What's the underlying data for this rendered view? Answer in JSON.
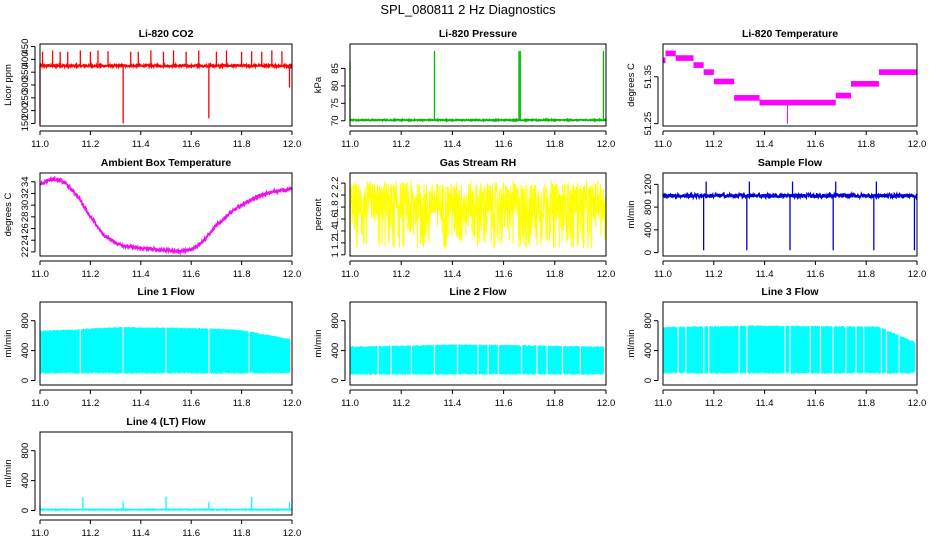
{
  "figure": {
    "title": "SPL_080811  2 Hz Diagnostics"
  },
  "chart_data": [
    {
      "type": "line",
      "title": "Li-820 CO2",
      "ylabel": "Licor ppm",
      "color": "#ff0000",
      "xlim": [
        11.0,
        12.0
      ],
      "ylim": [
        140,
        460
      ],
      "xticks": [
        "11.0",
        "11.2",
        "11.4",
        "11.6",
        "11.8",
        "12.0"
      ],
      "yticks": [
        150,
        200,
        250,
        300,
        350,
        400,
        450
      ],
      "pattern": "spiky",
      "base": 375,
      "noise": 4,
      "x_start": 11.0,
      "x_end": 12.0,
      "spikes": [
        [
          11.0,
          145
        ],
        [
          11.01,
          430
        ],
        [
          11.05,
          435
        ],
        [
          11.08,
          430
        ],
        [
          11.11,
          430
        ],
        [
          11.16,
          435
        ],
        [
          11.2,
          430
        ],
        [
          11.23,
          435
        ],
        [
          11.27,
          432
        ],
        [
          11.33,
          150
        ],
        [
          11.36,
          430
        ],
        [
          11.39,
          430
        ],
        [
          11.44,
          435
        ],
        [
          11.49,
          430
        ],
        [
          11.53,
          435
        ],
        [
          11.58,
          430
        ],
        [
          11.63,
          435
        ],
        [
          11.67,
          170
        ],
        [
          11.7,
          430
        ],
        [
          11.74,
          435
        ],
        [
          11.8,
          430
        ],
        [
          11.84,
          432
        ],
        [
          11.88,
          430
        ],
        [
          11.92,
          435
        ],
        [
          11.96,
          432
        ],
        [
          11.99,
          290
        ]
      ]
    },
    {
      "type": "line",
      "title": "Li-820 Pressure",
      "ylabel": "kPa",
      "color": "#00bb00",
      "xlim": [
        11.0,
        12.0
      ],
      "ylim": [
        68.5,
        92
      ],
      "xticks": [
        "11.0",
        "11.2",
        "11.4",
        "11.6",
        "11.8",
        "12.0"
      ],
      "yticks": [
        70,
        75,
        80,
        85
      ],
      "pattern": "spiky",
      "base": 70.2,
      "noise": 0.15,
      "x_start": 11.0,
      "x_end": 12.0,
      "spikes": [
        [
          11.0,
          87
        ],
        [
          11.33,
          90
        ],
        [
          11.66,
          90
        ],
        [
          11.665,
          90
        ],
        [
          11.99,
          90
        ]
      ]
    },
    {
      "type": "line",
      "title": "Li-820 Temperature",
      "ylabel": "degrees C",
      "color": "#ff00ff",
      "xlim": [
        11.0,
        12.0
      ],
      "ylim": [
        51.245,
        51.42
      ],
      "xticks": [
        "11.0",
        "11.2",
        "11.4",
        "11.6",
        "11.8",
        "12.0"
      ],
      "yticks": [
        51.25,
        51.35
      ],
      "pattern": "steps",
      "x_start": 11.0,
      "x_end": 12.0,
      "band": 0.012,
      "levels": [
        [
          11.0,
          11.01,
          51.385
        ],
        [
          11.01,
          11.05,
          51.4
        ],
        [
          11.05,
          11.12,
          51.39
        ],
        [
          11.12,
          11.16,
          51.375
        ],
        [
          11.16,
          11.2,
          51.36
        ],
        [
          11.2,
          11.28,
          51.34
        ],
        [
          11.28,
          11.38,
          51.305
        ],
        [
          11.38,
          11.68,
          51.295
        ],
        [
          11.68,
          11.74,
          51.31
        ],
        [
          11.74,
          11.85,
          51.335
        ],
        [
          11.85,
          12.0,
          51.36
        ]
      ],
      "spikes": [
        [
          11.49,
          51.25
        ]
      ]
    },
    {
      "type": "line",
      "title": "Ambient Box Temperature",
      "ylabel": "degrees C",
      "color": "#ee11ee",
      "xlim": [
        11.0,
        12.0
      ],
      "ylim": [
        21.3,
        35.5
      ],
      "xticks": [
        "11.0",
        "11.2",
        "11.4",
        "11.6",
        "11.8",
        "12.0"
      ],
      "yticks": [
        22,
        24,
        26,
        28,
        30,
        32,
        34
      ],
      "pattern": "curve",
      "x_start": 11.0,
      "x_end": 12.0,
      "band": 0.6,
      "points": [
        [
          11.0,
          33.5
        ],
        [
          11.03,
          34.3
        ],
        [
          11.06,
          34.5
        ],
        [
          11.1,
          33.8
        ],
        [
          11.15,
          31.5
        ],
        [
          11.2,
          28.0
        ],
        [
          11.25,
          25.0
        ],
        [
          11.3,
          23.5
        ],
        [
          11.35,
          22.9
        ],
        [
          11.4,
          22.6
        ],
        [
          11.5,
          22.3
        ],
        [
          11.55,
          22.1
        ],
        [
          11.6,
          22.3
        ],
        [
          11.65,
          24.0
        ],
        [
          11.7,
          26.5
        ],
        [
          11.75,
          28.5
        ],
        [
          11.8,
          30.0
        ],
        [
          11.85,
          31.2
        ],
        [
          11.9,
          32.0
        ],
        [
          11.95,
          32.5
        ],
        [
          12.0,
          32.8
        ]
      ]
    },
    {
      "type": "line",
      "title": "Gas Stream RH",
      "ylabel": "percent",
      "color": "#ffff00",
      "xlim": [
        11.0,
        12.0
      ],
      "ylim": [
        0.98,
        2.37
      ],
      "xticks": [
        "11.0",
        "11.2",
        "11.4",
        "11.6",
        "11.8",
        "12.0"
      ],
      "yticks": [
        1.0,
        1.2,
        1.4,
        1.6,
        1.8,
        2.0,
        2.2
      ],
      "pattern": "noisy",
      "x_start": 11.0,
      "x_end": 12.0,
      "low": 1.1,
      "high": 2.25,
      "core_low": 1.6,
      "core_high": 2.2
    },
    {
      "type": "line",
      "title": "Sample Flow",
      "ylabel": "ml/min",
      "color": "#0000dd",
      "xlim": [
        11.0,
        12.0
      ],
      "ylim": [
        -60,
        1400
      ],
      "xticks": [
        "11.0",
        "11.2",
        "11.4",
        "11.6",
        "11.8",
        "12.0"
      ],
      "yticks": [
        0,
        400,
        800,
        1200
      ],
      "pattern": "spiky",
      "base": 1000,
      "noise": 35,
      "x_start": 11.0,
      "x_end": 12.0,
      "spikes": [
        [
          11.0,
          1050
        ],
        [
          11.16,
          40
        ],
        [
          11.17,
          1250
        ],
        [
          11.33,
          40
        ],
        [
          11.34,
          1250
        ],
        [
          11.5,
          40
        ],
        [
          11.51,
          1250
        ],
        [
          11.67,
          40
        ],
        [
          11.68,
          1250
        ],
        [
          11.83,
          40
        ],
        [
          11.84,
          1250
        ],
        [
          11.99,
          40
        ]
      ]
    },
    {
      "type": "line",
      "title": "Line 1 Flow",
      "ylabel": "ml/min",
      "color": "#00ffff",
      "xlim": [
        11.0,
        12.0
      ],
      "ylim": [
        -60,
        1050
      ],
      "xticks": [
        "11.0",
        "11.2",
        "11.4",
        "11.6",
        "11.8",
        "12.0"
      ],
      "yticks": [
        0,
        400,
        800
      ],
      "pattern": "block",
      "x_start": 11.0,
      "x_end": 11.99,
      "low": 90,
      "high": 700,
      "tops": [
        [
          11.0,
          670
        ],
        [
          11.16,
          690
        ],
        [
          11.2,
          700
        ],
        [
          11.33,
          720
        ],
        [
          11.45,
          710
        ],
        [
          11.5,
          715
        ],
        [
          11.67,
          700
        ],
        [
          11.8,
          680
        ],
        [
          11.99,
          560
        ]
      ],
      "gaps": [
        11.16,
        11.33,
        11.5,
        11.67,
        11.83
      ]
    },
    {
      "type": "line",
      "title": "Line 2 Flow",
      "ylabel": "ml/min",
      "color": "#00ffff",
      "xlim": [
        11.0,
        12.0
      ],
      "ylim": [
        -60,
        1050
      ],
      "xticks": [
        "11.0",
        "11.2",
        "11.4",
        "11.6",
        "11.8",
        "12.0"
      ],
      "yticks": [
        0,
        400,
        800
      ],
      "pattern": "block",
      "x_start": 11.0,
      "x_end": 11.99,
      "low": 75,
      "high": 470,
      "tops": [
        [
          11.0,
          460
        ],
        [
          11.2,
          470
        ],
        [
          11.4,
          485
        ],
        [
          11.6,
          480
        ],
        [
          11.8,
          470
        ],
        [
          11.99,
          460
        ]
      ],
      "gaps": [
        11.11,
        11.16,
        11.24,
        11.33,
        11.42,
        11.5,
        11.54,
        11.58,
        11.67,
        11.73,
        11.77,
        11.83,
        11.9
      ]
    },
    {
      "type": "line",
      "title": "Line 3 Flow",
      "ylabel": "ml/min",
      "color": "#00ffff",
      "xlim": [
        11.0,
        12.0
      ],
      "ylim": [
        -60,
        1050
      ],
      "xticks": [
        "11.0",
        "11.2",
        "11.4",
        "11.6",
        "11.8",
        "12.0"
      ],
      "yticks": [
        0,
        400,
        800
      ],
      "pattern": "block",
      "x_start": 11.0,
      "x_end": 11.99,
      "low": 90,
      "high": 720,
      "tops": [
        [
          11.0,
          720
        ],
        [
          11.2,
          730
        ],
        [
          11.35,
          740
        ],
        [
          11.5,
          735
        ],
        [
          11.7,
          730
        ],
        [
          11.85,
          725
        ],
        [
          11.99,
          520
        ]
      ],
      "gaps": [
        11.06,
        11.09,
        11.16,
        11.18,
        11.3,
        11.33,
        11.48,
        11.5,
        11.58,
        11.62,
        11.67,
        11.72,
        11.76,
        11.79,
        11.86,
        11.88,
        11.93
      ]
    },
    {
      "type": "line",
      "title": "Line 4 (LT) Flow",
      "ylabel": "ml/min",
      "color": "#00ffff",
      "xlim": [
        11.0,
        12.0
      ],
      "ylim": [
        -60,
        1050
      ],
      "xticks": [
        "11.0",
        "11.2",
        "11.4",
        "11.6",
        "11.8",
        "12.0"
      ],
      "yticks": [
        0,
        400,
        800
      ],
      "pattern": "spiky",
      "base": 12,
      "noise": 4,
      "x_start": 11.0,
      "x_end": 12.0,
      "spikes": [
        [
          11.0,
          70
        ],
        [
          11.17,
          180
        ],
        [
          11.33,
          110
        ],
        [
          11.5,
          185
        ],
        [
          11.67,
          110
        ],
        [
          11.84,
          180
        ],
        [
          11.99,
          110
        ]
      ]
    }
  ]
}
